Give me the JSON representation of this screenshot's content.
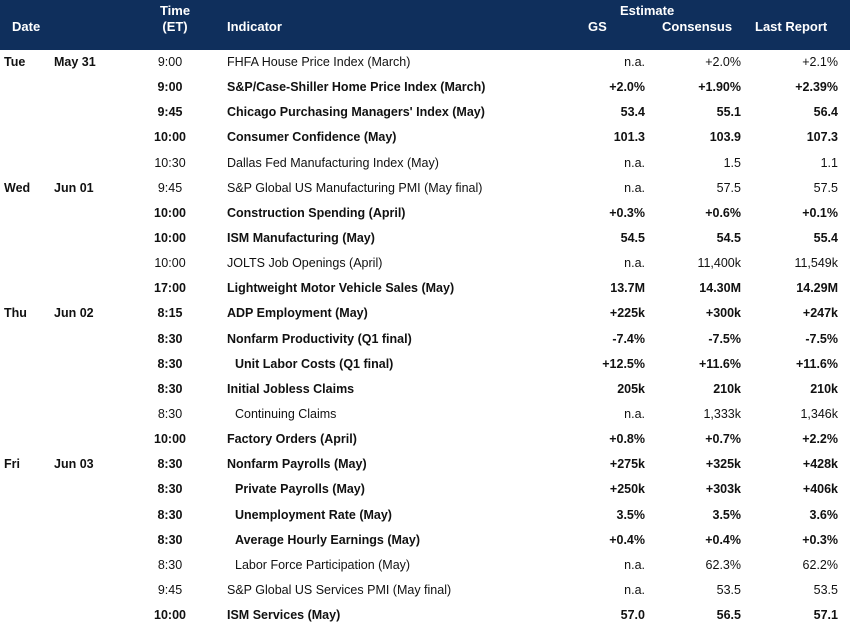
{
  "header": {
    "date": "Date",
    "time_line1": "Time",
    "time_line2": "(ET)",
    "indicator": "Indicator",
    "estimate": "Estimate",
    "gs": "GS",
    "consensus": "Consensus",
    "last_report": "Last Report"
  },
  "rows": [
    {
      "day": "Tue",
      "date": "May 31",
      "time": "9:00",
      "indicator": "FHFA House Price Index (March)",
      "gs": "n.a.",
      "consensus": "+2.0%",
      "last": "+2.1%",
      "bold": false,
      "sub": false
    },
    {
      "day": "",
      "date": "",
      "time": "9:00",
      "indicator": "S&P/Case-Shiller Home Price Index (March)",
      "gs": "+2.0%",
      "consensus": "+1.90%",
      "last": "+2.39%",
      "bold": true,
      "sub": false
    },
    {
      "day": "",
      "date": "",
      "time": "9:45",
      "indicator": "Chicago Purchasing Managers' Index (May)",
      "gs": "53.4",
      "consensus": "55.1",
      "last": "56.4",
      "bold": true,
      "sub": false
    },
    {
      "day": "",
      "date": "",
      "time": "10:00",
      "indicator": "Consumer Confidence (May)",
      "gs": "101.3",
      "consensus": "103.9",
      "last": "107.3",
      "bold": true,
      "sub": false
    },
    {
      "day": "",
      "date": "",
      "time": "10:30",
      "indicator": "Dallas Fed Manufacturing Index (May)",
      "gs": "n.a.",
      "consensus": "1.5",
      "last": "1.1",
      "bold": false,
      "sub": false
    },
    {
      "day": "Wed",
      "date": "Jun 01",
      "time": "9:45",
      "indicator": "S&P Global US Manufacturing PMI (May final)",
      "gs": "n.a.",
      "consensus": "57.5",
      "last": "57.5",
      "bold": false,
      "sub": false
    },
    {
      "day": "",
      "date": "",
      "time": "10:00",
      "indicator": "Construction Spending (April)",
      "gs": "+0.3%",
      "consensus": "+0.6%",
      "last": "+0.1%",
      "bold": true,
      "sub": false
    },
    {
      "day": "",
      "date": "",
      "time": "10:00",
      "indicator": "ISM Manufacturing (May)",
      "gs": "54.5",
      "consensus": "54.5",
      "last": "55.4",
      "bold": true,
      "sub": false
    },
    {
      "day": "",
      "date": "",
      "time": "10:00",
      "indicator": "JOLTS Job Openings (April)",
      "gs": "n.a.",
      "consensus": "11,400k",
      "last": "11,549k",
      "bold": false,
      "sub": false
    },
    {
      "day": "",
      "date": "",
      "time": "17:00",
      "indicator": "Lightweight Motor Vehicle Sales (May)",
      "gs": "13.7M",
      "consensus": "14.30M",
      "last": "14.29M",
      "bold": true,
      "sub": false
    },
    {
      "day": "Thu",
      "date": "Jun 02",
      "time": "8:15",
      "indicator": "ADP Employment (May)",
      "gs": "+225k",
      "consensus": "+300k",
      "last": "+247k",
      "bold": true,
      "sub": false
    },
    {
      "day": "",
      "date": "",
      "time": "8:30",
      "indicator": "Nonfarm Productivity (Q1 final)",
      "gs": "-7.4%",
      "consensus": "-7.5%",
      "last": "-7.5%",
      "bold": true,
      "sub": false
    },
    {
      "day": "",
      "date": "",
      "time": "8:30",
      "indicator": "Unit Labor Costs (Q1 final)",
      "gs": "+12.5%",
      "consensus": "+11.6%",
      "last": "+11.6%",
      "bold": true,
      "sub": true
    },
    {
      "day": "",
      "date": "",
      "time": "8:30",
      "indicator": "Initial Jobless Claims",
      "gs": "205k",
      "consensus": "210k",
      "last": "210k",
      "bold": true,
      "sub": false
    },
    {
      "day": "",
      "date": "",
      "time": "8:30",
      "indicator": "Continuing Claims",
      "gs": "n.a.",
      "consensus": "1,333k",
      "last": "1,346k",
      "bold": false,
      "sub": true
    },
    {
      "day": "",
      "date": "",
      "time": "10:00",
      "indicator": "Factory Orders (April)",
      "gs": "+0.8%",
      "consensus": "+0.7%",
      "last": "+2.2%",
      "bold": true,
      "sub": false
    },
    {
      "day": "Fri",
      "date": "Jun 03",
      "time": "8:30",
      "indicator": "Nonfarm Payrolls (May)",
      "gs": "+275k",
      "consensus": "+325k",
      "last": "+428k",
      "bold": true,
      "sub": false
    },
    {
      "day": "",
      "date": "",
      "time": "8:30",
      "indicator": "Private Payrolls (May)",
      "gs": "+250k",
      "consensus": "+303k",
      "last": "+406k",
      "bold": true,
      "sub": true
    },
    {
      "day": "",
      "date": "",
      "time": "8:30",
      "indicator": "Unemployment Rate (May)",
      "gs": "3.5%",
      "consensus": "3.5%",
      "last": "3.6%",
      "bold": true,
      "sub": true
    },
    {
      "day": "",
      "date": "",
      "time": "8:30",
      "indicator": "Average Hourly Earnings (May)",
      "gs": "+0.4%",
      "consensus": "+0.4%",
      "last": "+0.3%",
      "bold": true,
      "sub": true
    },
    {
      "day": "",
      "date": "",
      "time": "8:30",
      "indicator": "Labor Force Participation (May)",
      "gs": "n.a.",
      "consensus": "62.3%",
      "last": "62.2%",
      "bold": false,
      "sub": true
    },
    {
      "day": "",
      "date": "",
      "time": "9:45",
      "indicator": "S&P Global US Services PMI (May final)",
      "gs": "n.a.",
      "consensus": "53.5",
      "last": "53.5",
      "bold": false,
      "sub": false
    },
    {
      "day": "",
      "date": "",
      "time": "10:00",
      "indicator": "ISM Services (May)",
      "gs": "57.0",
      "consensus": "56.5",
      "last": "57.1",
      "bold": true,
      "sub": false
    }
  ]
}
